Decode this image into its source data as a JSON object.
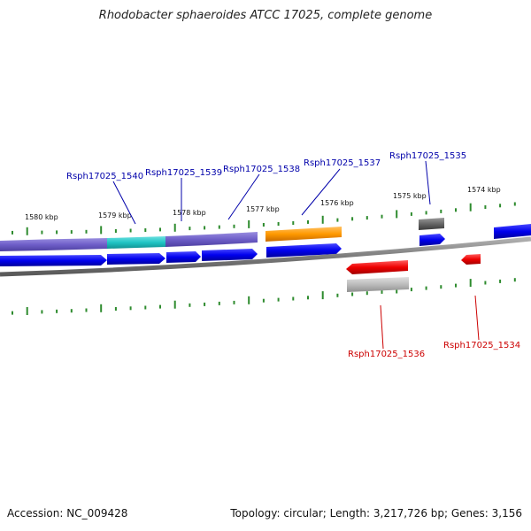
{
  "title": "Rhodobacter sphaeroides ATCC 17025, complete genome",
  "footer": {
    "accession": "Accession: NC_009428",
    "stats": "Topology: circular; Length: 3,217,726 bp; Genes: 3,156"
  },
  "colors": {
    "forward_label": "#0000aa",
    "reverse_label": "#cc0000",
    "tick": "#2e8b2e",
    "backbone": "#808080",
    "cds_blue": "#0000ee",
    "cds_purple": "#7060cc",
    "cds_cyan": "#20c8c8",
    "cds_orange": "#ff9900",
    "cds_gray": "#666666",
    "cds_red": "#ee0000",
    "cds_lightgray": "#bbbbbb"
  },
  "scale_labels": [
    "1580 kbp",
    "1579 kbp",
    "1578 kbp",
    "1577 kbp",
    "1576 kbp",
    "1575 kbp",
    "1574 kbp"
  ],
  "gene_labels": {
    "forward": [
      "Rsph17025_1540",
      "Rsph17025_1539",
      "Rsph17025_1538",
      "Rsph17025_1537",
      "Rsph17025_1535"
    ],
    "reverse": [
      "Rsph17025_1536",
      "Rsph17025_1534"
    ]
  }
}
